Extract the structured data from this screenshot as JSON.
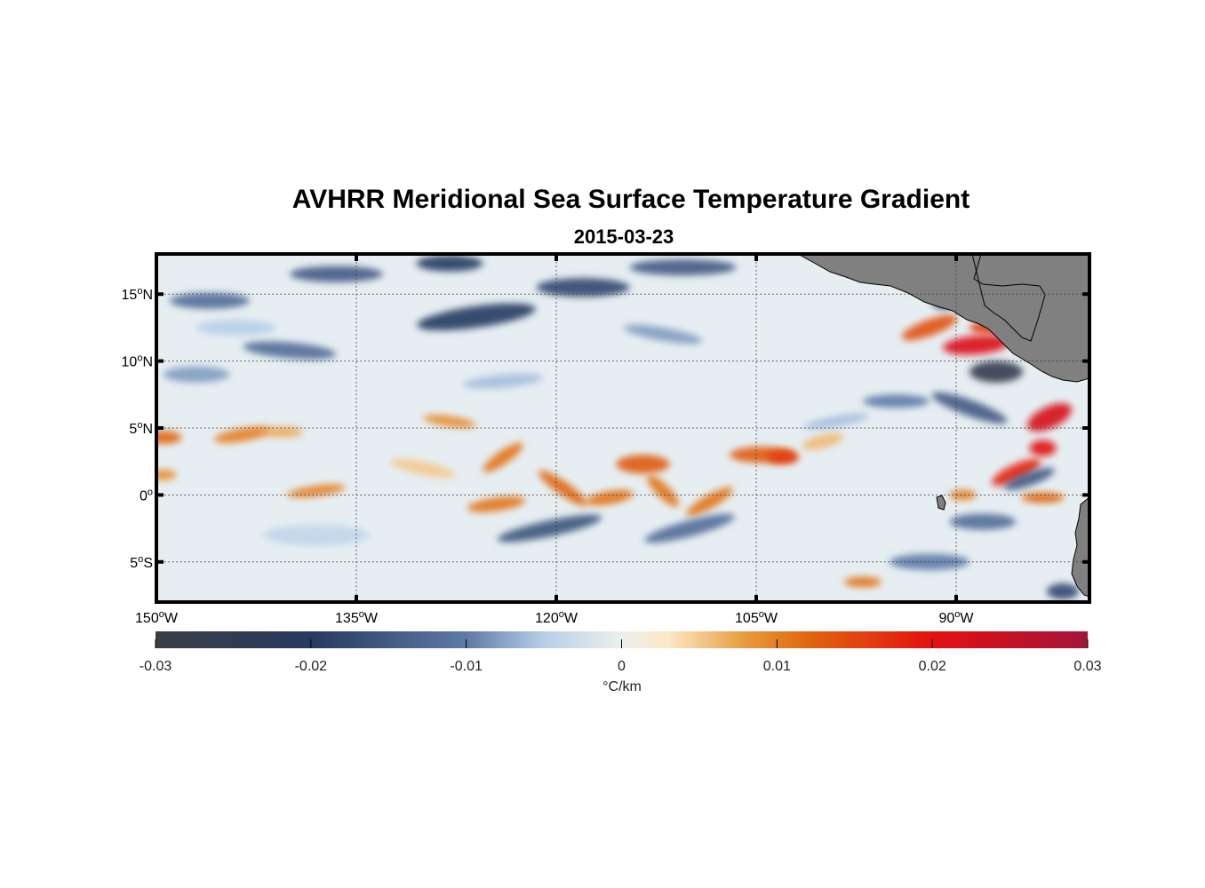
{
  "figure": {
    "title": "AVHRR Meridional Sea Surface Temperature Gradient",
    "subtitle": "2015-03-23"
  },
  "map": {
    "lon_range": [
      -150,
      -80
    ],
    "lat_range": [
      -8,
      18
    ],
    "lon_ticks": [
      {
        "value": -150,
        "deg": "150",
        "hem": "W"
      },
      {
        "value": -135,
        "deg": "135",
        "hem": "W"
      },
      {
        "value": -120,
        "deg": "120",
        "hem": "W"
      },
      {
        "value": -105,
        "deg": "105",
        "hem": "W"
      },
      {
        "value": -90,
        "deg": "90",
        "hem": "W"
      }
    ],
    "lat_ticks": [
      {
        "value": 15,
        "deg": "15",
        "hem": "N"
      },
      {
        "value": 10,
        "deg": "10",
        "hem": "N"
      },
      {
        "value": 5,
        "deg": "5",
        "hem": "N"
      },
      {
        "value": 0,
        "deg": "0",
        "hem": ""
      },
      {
        "value": -5,
        "deg": "5",
        "hem": "S"
      }
    ],
    "grid": "dotted",
    "land_color": "#808080",
    "ocean_background": "#e6eef2"
  },
  "colorbar": {
    "range": [
      -0.03,
      0.03
    ],
    "ticks": [
      {
        "value": -0.03,
        "label": "-0.03"
      },
      {
        "value": -0.02,
        "label": "-0.02"
      },
      {
        "value": -0.01,
        "label": "-0.01"
      },
      {
        "value": 0,
        "label": "0"
      },
      {
        "value": 0.01,
        "label": "0.01"
      },
      {
        "value": 0.02,
        "label": "0.02"
      },
      {
        "value": 0.03,
        "label": "0.03"
      }
    ],
    "unit": "°C/km",
    "colormap": [
      {
        "value": -0.03,
        "color": "#3a3d44"
      },
      {
        "value": -0.02,
        "color": "#263a60"
      },
      {
        "value": -0.01,
        "color": "#5d7aa6"
      },
      {
        "value": -0.005,
        "color": "#b7cfe8"
      },
      {
        "value": 0,
        "color": "#ecf0ec"
      },
      {
        "value": 0.003,
        "color": "#fde8c8"
      },
      {
        "value": 0.008,
        "color": "#e79a3a"
      },
      {
        "value": 0.012,
        "color": "#e0660f"
      },
      {
        "value": 0.02,
        "color": "#e31010"
      },
      {
        "value": 0.03,
        "color": "#a3143a"
      }
    ]
  },
  "chart_data": {
    "type": "heatmap",
    "title": "AVHRR Meridional Sea Surface Temperature Gradient",
    "subtitle": "2015-03-23",
    "xlabel": "",
    "ylabel": "",
    "colorbar_label": "°C/km",
    "xlim": [
      -150,
      -80
    ],
    "ylim": [
      -8,
      18
    ],
    "clim": [
      -0.03,
      0.03
    ],
    "features": [
      {
        "lon": -149.5,
        "lat": 4.3,
        "rx": 1.4,
        "ry": 0.5,
        "angle": 0,
        "value": 0.012
      },
      {
        "lon": -149.5,
        "lat": 1.5,
        "rx": 1.0,
        "ry": 0.4,
        "angle": 0,
        "value": 0.009
      },
      {
        "lon": -143.5,
        "lat": 4.5,
        "rx": 2.2,
        "ry": 0.5,
        "angle": -10,
        "value": 0.01
      },
      {
        "lon": -140.5,
        "lat": 4.7,
        "rx": 1.5,
        "ry": 0.4,
        "angle": 0,
        "value": 0.007
      },
      {
        "lon": -138.0,
        "lat": 0.3,
        "rx": 2.2,
        "ry": 0.4,
        "angle": -8,
        "value": 0.01
      },
      {
        "lon": -128.0,
        "lat": 5.5,
        "rx": 2.0,
        "ry": 0.4,
        "angle": 8,
        "value": 0.009
      },
      {
        "lon": -130.0,
        "lat": 2.0,
        "rx": 2.5,
        "ry": 0.5,
        "angle": 12,
        "value": 0.005
      },
      {
        "lon": -124.0,
        "lat": 2.8,
        "rx": 1.8,
        "ry": 0.5,
        "angle": -35,
        "value": 0.011
      },
      {
        "lon": -124.5,
        "lat": -0.7,
        "rx": 2.2,
        "ry": 0.5,
        "angle": -8,
        "value": 0.011
      },
      {
        "lon": -119.5,
        "lat": 0.5,
        "rx": 2.2,
        "ry": 0.5,
        "angle": 35,
        "value": 0.012
      },
      {
        "lon": -116.0,
        "lat": -0.2,
        "rx": 1.8,
        "ry": 0.5,
        "angle": -10,
        "value": 0.011
      },
      {
        "lon": -113.5,
        "lat": 2.3,
        "rx": 2.0,
        "ry": 0.7,
        "angle": 0,
        "value": 0.013
      },
      {
        "lon": -112.0,
        "lat": 0.3,
        "rx": 1.6,
        "ry": 0.5,
        "angle": 45,
        "value": 0.011
      },
      {
        "lon": -108.5,
        "lat": -0.5,
        "rx": 2.0,
        "ry": 0.5,
        "angle": -30,
        "value": 0.011
      },
      {
        "lon": -104.5,
        "lat": 3.0,
        "rx": 2.5,
        "ry": 0.6,
        "angle": 0,
        "value": 0.013
      },
      {
        "lon": -103.0,
        "lat": 2.8,
        "rx": 1.2,
        "ry": 0.5,
        "angle": 0,
        "value": 0.016
      },
      {
        "lon": -100.0,
        "lat": 4.0,
        "rx": 1.6,
        "ry": 0.5,
        "angle": -15,
        "value": 0.006
      },
      {
        "lon": -97.0,
        "lat": -6.5,
        "rx": 1.4,
        "ry": 0.4,
        "angle": 0,
        "value": 0.011
      },
      {
        "lon": -92.0,
        "lat": 12.5,
        "rx": 2.2,
        "ry": 0.6,
        "angle": -20,
        "value": 0.014
      },
      {
        "lon": -92.5,
        "lat": 15.5,
        "rx": 1.0,
        "ry": 0.4,
        "angle": 0,
        "value": 0.015
      },
      {
        "lon": -88.5,
        "lat": 11.2,
        "rx": 2.5,
        "ry": 0.7,
        "angle": -5,
        "value": 0.021
      },
      {
        "lon": -87.5,
        "lat": 12.5,
        "rx": 1.5,
        "ry": 0.5,
        "angle": 0,
        "value": 0.016
      },
      {
        "lon": -83.0,
        "lat": 5.8,
        "rx": 1.8,
        "ry": 0.8,
        "angle": -25,
        "value": 0.022
      },
      {
        "lon": -83.5,
        "lat": 3.5,
        "rx": 1.0,
        "ry": 0.6,
        "angle": 0,
        "value": 0.02
      },
      {
        "lon": -85.5,
        "lat": 1.7,
        "rx": 2.0,
        "ry": 0.6,
        "angle": -25,
        "value": 0.018
      },
      {
        "lon": -83.5,
        "lat": -0.2,
        "rx": 1.6,
        "ry": 0.4,
        "angle": 0,
        "value": 0.012
      },
      {
        "lon": -89.5,
        "lat": 0.0,
        "rx": 1.0,
        "ry": 0.4,
        "angle": 0,
        "value": 0.01
      },
      {
        "lon": -146.0,
        "lat": 14.5,
        "rx": 3.0,
        "ry": 0.6,
        "angle": 0,
        "value": -0.012
      },
      {
        "lon": -136.5,
        "lat": 16.5,
        "rx": 3.5,
        "ry": 0.6,
        "angle": 0,
        "value": -0.015
      },
      {
        "lon": -128.0,
        "lat": 17.3,
        "rx": 2.5,
        "ry": 0.6,
        "angle": 0,
        "value": -0.02
      },
      {
        "lon": -126.0,
        "lat": 13.3,
        "rx": 4.5,
        "ry": 0.8,
        "angle": -8,
        "value": -0.02
      },
      {
        "lon": -118.0,
        "lat": 15.5,
        "rx": 3.5,
        "ry": 0.7,
        "angle": 0,
        "value": -0.018
      },
      {
        "lon": -110.5,
        "lat": 17.0,
        "rx": 4.0,
        "ry": 0.6,
        "angle": 0,
        "value": -0.015
      },
      {
        "lon": -112.0,
        "lat": 12.0,
        "rx": 3.0,
        "ry": 0.5,
        "angle": 10,
        "value": -0.008
      },
      {
        "lon": -140.0,
        "lat": 10.8,
        "rx": 3.5,
        "ry": 0.6,
        "angle": 5,
        "value": -0.012
      },
      {
        "lon": -147.0,
        "lat": 9.0,
        "rx": 2.5,
        "ry": 0.6,
        "angle": 0,
        "value": -0.008
      },
      {
        "lon": -124.0,
        "lat": 8.5,
        "rx": 3.0,
        "ry": 0.5,
        "angle": -5,
        "value": -0.006
      },
      {
        "lon": -87.0,
        "lat": 9.2,
        "rx": 2.0,
        "ry": 0.8,
        "angle": 0,
        "value": -0.027
      },
      {
        "lon": -91.0,
        "lat": 14.5,
        "rx": 0.8,
        "ry": 0.6,
        "angle": 0,
        "value": -0.02
      },
      {
        "lon": -89.0,
        "lat": 6.5,
        "rx": 3.0,
        "ry": 0.6,
        "angle": 20,
        "value": -0.015
      },
      {
        "lon": -94.5,
        "lat": 7.0,
        "rx": 2.5,
        "ry": 0.5,
        "angle": 0,
        "value": -0.01
      },
      {
        "lon": -120.5,
        "lat": -2.5,
        "rx": 4.0,
        "ry": 0.6,
        "angle": -12,
        "value": -0.016
      },
      {
        "lon": -110.0,
        "lat": -2.5,
        "rx": 3.5,
        "ry": 0.6,
        "angle": -15,
        "value": -0.012
      },
      {
        "lon": -88.0,
        "lat": -2.0,
        "rx": 2.5,
        "ry": 0.6,
        "angle": 0,
        "value": -0.012
      },
      {
        "lon": -84.5,
        "lat": 1.2,
        "rx": 2.0,
        "ry": 0.5,
        "angle": -20,
        "value": -0.015
      },
      {
        "lon": -92.0,
        "lat": -5.0,
        "rx": 3.0,
        "ry": 0.6,
        "angle": 0,
        "value": -0.01
      },
      {
        "lon": -82.0,
        "lat": -7.2,
        "rx": 1.2,
        "ry": 0.6,
        "angle": 0,
        "value": -0.018
      },
      {
        "lon": -99.0,
        "lat": 5.5,
        "rx": 2.5,
        "ry": 0.4,
        "angle": -10,
        "value": -0.006
      },
      {
        "lon": -138.0,
        "lat": -3.0,
        "rx": 4.0,
        "ry": 0.8,
        "angle": 0,
        "value": -0.004
      },
      {
        "lon": -144.0,
        "lat": 12.5,
        "rx": 3.0,
        "ry": 0.6,
        "angle": 0,
        "value": -0.005
      }
    ]
  }
}
